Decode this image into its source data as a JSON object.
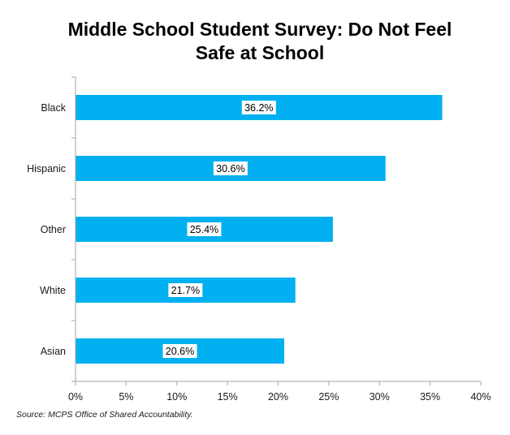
{
  "chart_data": {
    "type": "bar",
    "orientation": "horizontal",
    "title_lines": [
      "Middle School Student Survey: Do Not Feel",
      "Safe at School"
    ],
    "categories": [
      "Black",
      "Hispanic",
      "Other",
      "White",
      "Asian"
    ],
    "values": [
      36.2,
      30.6,
      25.4,
      21.7,
      20.6
    ],
    "data_labels": [
      "36.2%",
      "30.6%",
      "25.4%",
      "21.7%",
      "20.6%"
    ],
    "xlim": [
      0,
      40
    ],
    "x_ticks": [
      0,
      5,
      10,
      15,
      20,
      25,
      30,
      35,
      40
    ],
    "x_tick_labels": [
      "0%",
      "5%",
      "10%",
      "15%",
      "20%",
      "25%",
      "30%",
      "35%",
      "40%"
    ],
    "grid": false,
    "legend": "none",
    "bar_color": "#00b0f0",
    "axis_color": "#a6a6a6",
    "xlabel": "",
    "ylabel": ""
  },
  "source_note": "Source: MCPS Office of Shared Accountability."
}
